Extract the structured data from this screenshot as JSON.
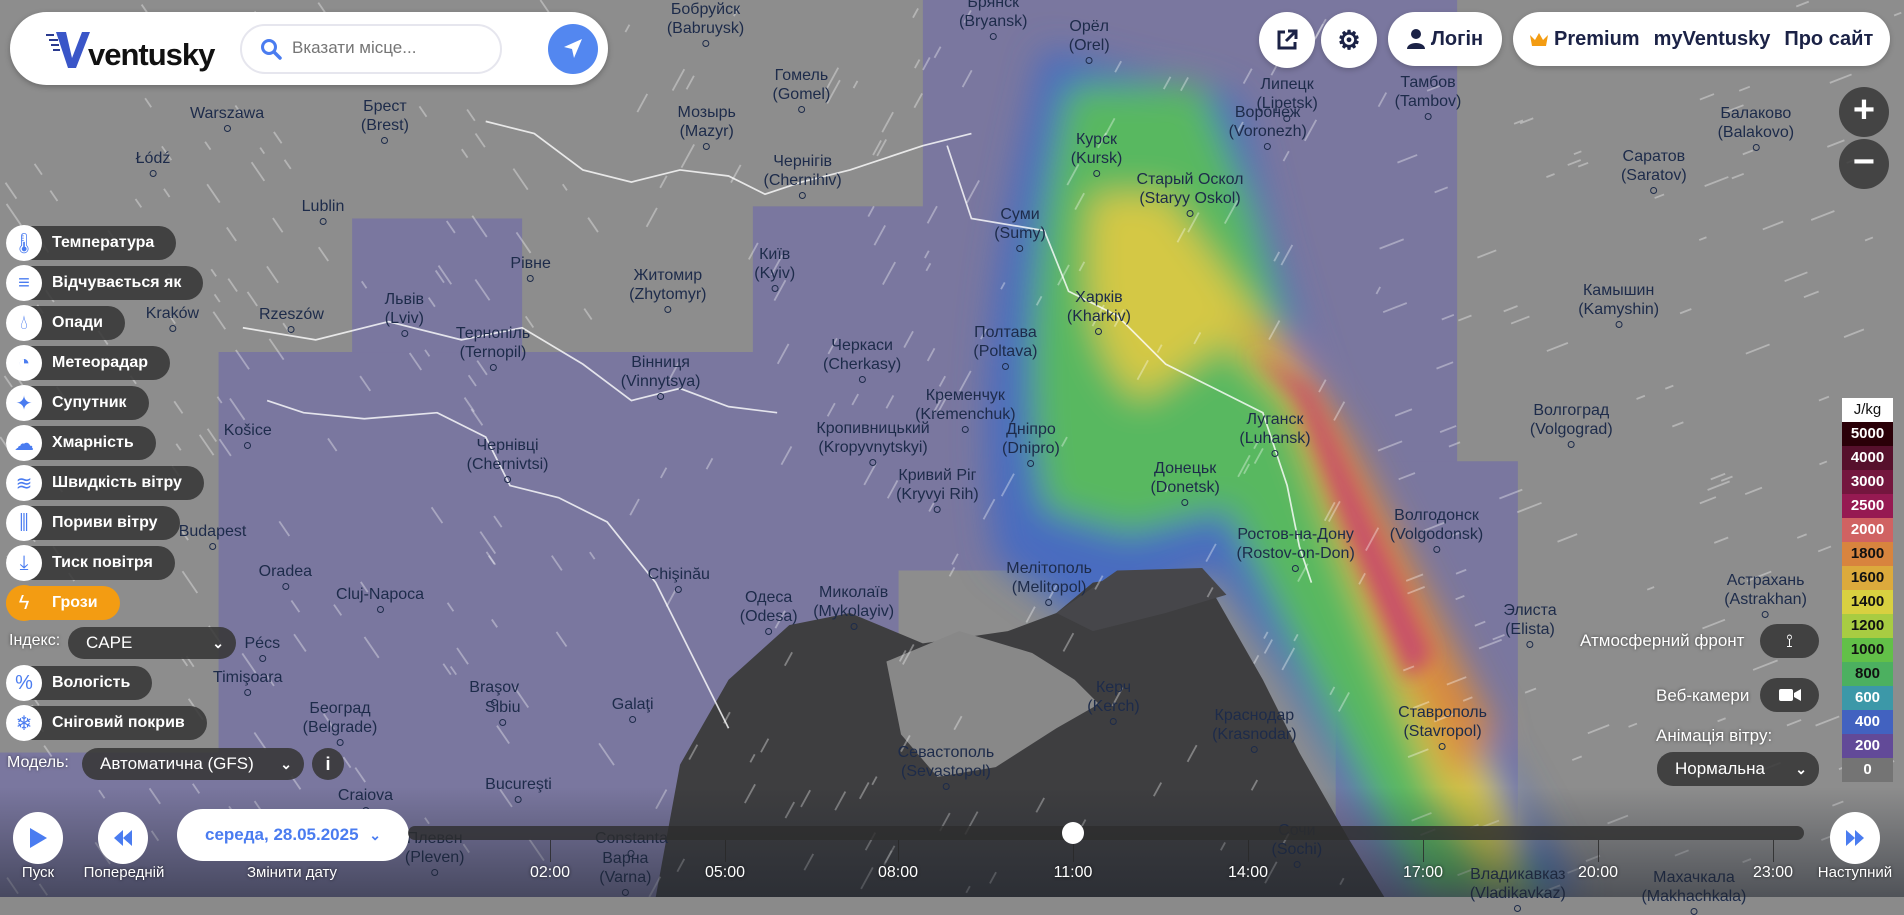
{
  "header": {
    "logo_text": "ventusky",
    "search_placeholder": "Вказати місце...",
    "login_label": "Логін",
    "premium_label": "Premium",
    "myventusky_label": "myVentusky",
    "about_label": "Про сайт",
    "brand_color": "#4a7cf0",
    "premium_icon": "crown-icon"
  },
  "layers": {
    "items": [
      {
        "label": "Температура",
        "icon": "thermometer-icon"
      },
      {
        "label": "Відчувається як",
        "icon": "feels-like-icon"
      },
      {
        "label": "Опади",
        "icon": "drop-icon"
      },
      {
        "label": "Метеорадар",
        "icon": "radar-icon"
      },
      {
        "label": "Супутник",
        "icon": "satellite-icon"
      },
      {
        "label": "Хмарність",
        "icon": "cloud-icon"
      },
      {
        "label": "Швидкість вітру",
        "icon": "wind-icon"
      },
      {
        "label": "Пориви вітру",
        "icon": "gust-icon"
      },
      {
        "label": "Тиск повітря",
        "icon": "pressure-icon"
      },
      {
        "label": "Грози",
        "icon": "lightning-icon",
        "active": true
      },
      {
        "label": "Вологість",
        "icon": "humidity-icon"
      },
      {
        "label": "Сніговий покрив",
        "icon": "snowflake-icon"
      }
    ],
    "index_label": "Індекс:",
    "index_value": "CAPE",
    "model_label": "Модель:",
    "model_value": "Автоматична (GFS)",
    "active_color": "#f39c12"
  },
  "right_panel": {
    "front_label": "Атмосферний фронт",
    "webcam_label": "Веб-камери",
    "animation_label": "Анімація вітру:",
    "animation_value": "Нормальна"
  },
  "legend": {
    "unit": "J/kg",
    "rows": [
      {
        "value": "5000",
        "color": "#2a0008",
        "text": "#fff"
      },
      {
        "value": "4000",
        "color": "#56102c",
        "text": "#fff"
      },
      {
        "value": "3000",
        "color": "#74163e",
        "text": "#fff"
      },
      {
        "value": "2500",
        "color": "#961a52",
        "text": "#fff"
      },
      {
        "value": "2000",
        "color": "#d06262",
        "text": "#fff"
      },
      {
        "value": "1800",
        "color": "#d8843e",
        "text": "#111"
      },
      {
        "value": "1600",
        "color": "#dcaa3c",
        "text": "#111"
      },
      {
        "value": "1400",
        "color": "#d8d040",
        "text": "#111"
      },
      {
        "value": "1200",
        "color": "#a8cc42",
        "text": "#111"
      },
      {
        "value": "1000",
        "color": "#62c048",
        "text": "#111"
      },
      {
        "value": "800",
        "color": "#4cb060",
        "text": "#111"
      },
      {
        "value": "600",
        "color": "#3c98a8",
        "text": "#fff"
      },
      {
        "value": "400",
        "color": "#4262c0",
        "text": "#fff"
      },
      {
        "value": "200",
        "color": "#624a98",
        "text": "#fff"
      },
      {
        "value": "0",
        "color": "#747474",
        "text": "#fff"
      }
    ]
  },
  "timeline": {
    "play_label": "Пуск",
    "prev_label": "Попередній",
    "change_date_label": "Змінити дату",
    "next_label": "Наступний",
    "date": "середа, 28.05.2025",
    "hours": [
      "02:00",
      "05:00",
      "08:00",
      "11:00",
      "14:00",
      "17:00",
      "20:00",
      "23:00"
    ],
    "current_hour": "11:00"
  },
  "cities": [
    [
      "Warszawa",
      ""
    ],
    [
      "Łódź",
      ""
    ],
    [
      "Lublin",
      ""
    ],
    [
      "Kraków",
      ""
    ],
    [
      "Rzeszów",
      ""
    ],
    [
      "Košice",
      ""
    ],
    [
      "Budapest",
      ""
    ],
    [
      "Oradea",
      ""
    ],
    [
      "Cluj-Napoca",
      ""
    ],
    [
      "Timişoara",
      ""
    ],
    [
      "Sibiu",
      ""
    ],
    [
      "Braşov",
      ""
    ],
    [
      "Galaţi",
      ""
    ],
    [
      "Chişinău",
      ""
    ],
    [
      "Bucureşti",
      ""
    ],
    [
      "Craiova",
      ""
    ],
    [
      "Constanta",
      ""
    ],
    [
      "Pécs",
      ""
    ],
    [
      "Рівне",
      ""
    ],
    [
      "Брест",
      "(Brest)"
    ],
    [
      "Мозырь",
      "(Mazyr)"
    ],
    [
      "Гомель",
      "(Gomel)"
    ],
    [
      "Бобруйск",
      "(Babruysk)"
    ],
    [
      "Брянск",
      "(Bryansk)"
    ],
    [
      "Орёл",
      "(Orel)"
    ],
    [
      "Чернігів",
      "(Chernihiv)"
    ],
    [
      "Житомир",
      "(Zhytomyr)"
    ],
    [
      "Київ",
      "(Kyiv)"
    ],
    [
      "Львів",
      "(Lviv)"
    ],
    [
      "Тернопіль",
      "(Ternopil)"
    ],
    [
      "Вінниця",
      "(Vinnytsya)"
    ],
    [
      "Чернівці",
      "(Chernivtsi)"
    ],
    [
      "Черкаси",
      "(Cherkasy)"
    ],
    [
      "Кременчук",
      "(Kremenchuk)"
    ],
    [
      "Суми",
      "(Sumy)"
    ],
    [
      "Полтава",
      "(Poltava)"
    ],
    [
      "Кропивницький",
      "(Kropyvnytskyi)"
    ],
    [
      "Кривий Ріг",
      "(Kryvyi Rih)"
    ],
    [
      "Дніпро",
      "(Dnipro)"
    ],
    [
      "Миколаїв",
      "(Mykolayiv)"
    ],
    [
      "Одеса",
      "(Odesa)"
    ],
    [
      "Мелітополь",
      "(Melitopol)"
    ],
    [
      "Севастополь",
      "(Sevastopol)"
    ],
    [
      "Керч",
      "(Kerch)"
    ],
    [
      "Курск",
      "(Kursk)"
    ],
    [
      "Старый Оскол",
      "(Staryy Oskol)"
    ],
    [
      "Воронеж",
      "(Voronezh)"
    ],
    [
      "Харків",
      "(Kharkiv)"
    ],
    [
      "Луганск",
      "(Luhansk)"
    ],
    [
      "Донецьк",
      "(Donetsk)"
    ],
    [
      "Ростов-на-Дону",
      "(Rostov-on-Don)"
    ],
    [
      "Волгодонск",
      "(Volgodonsk)"
    ],
    [
      "Краснодар",
      "(Krasnodar)"
    ],
    [
      "Ставрополь",
      "(Stavropol)"
    ],
    [
      "Сочи",
      "(Sochi)"
    ],
    [
      "Плевен",
      "(Pleven)"
    ],
    [
      "Варна",
      "(Varna)"
    ],
    [
      "Владикавказ",
      "(Vladikavkaz)"
    ],
    [
      "Махачкала",
      "(Makhachkala)"
    ],
    [
      "Элиста",
      "(Elista)"
    ],
    [
      "Астрахань",
      "(Astrakhan)"
    ],
    [
      "Волгоград",
      "(Volgograd)"
    ],
    [
      "Камышин",
      "(Kamyshin)"
    ],
    [
      "Саратов",
      "(Saratov)"
    ],
    [
      "Балаково",
      "(Balakovo)"
    ],
    [
      "Липецк",
      "(Lipetsk)"
    ],
    [
      "Тамбов",
      "(Tambov)"
    ],
    [
      "Београд",
      "(Belgrade)"
    ]
  ]
}
